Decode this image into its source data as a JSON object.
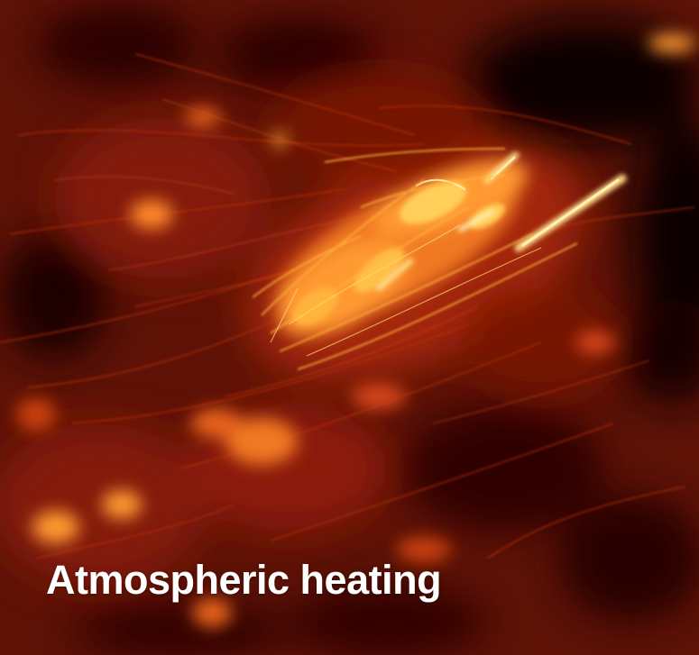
{
  "caption": "Atmospheric heating",
  "image": {
    "subject": "solar-corona-active-region",
    "palette": {
      "shadow": "#0c0101",
      "deep": "#3a0802",
      "base": "#6e1607",
      "mid": "#b02a0a",
      "glow": "#e8641a",
      "hot": "#ffb43c",
      "core": "#fff1b8"
    }
  }
}
